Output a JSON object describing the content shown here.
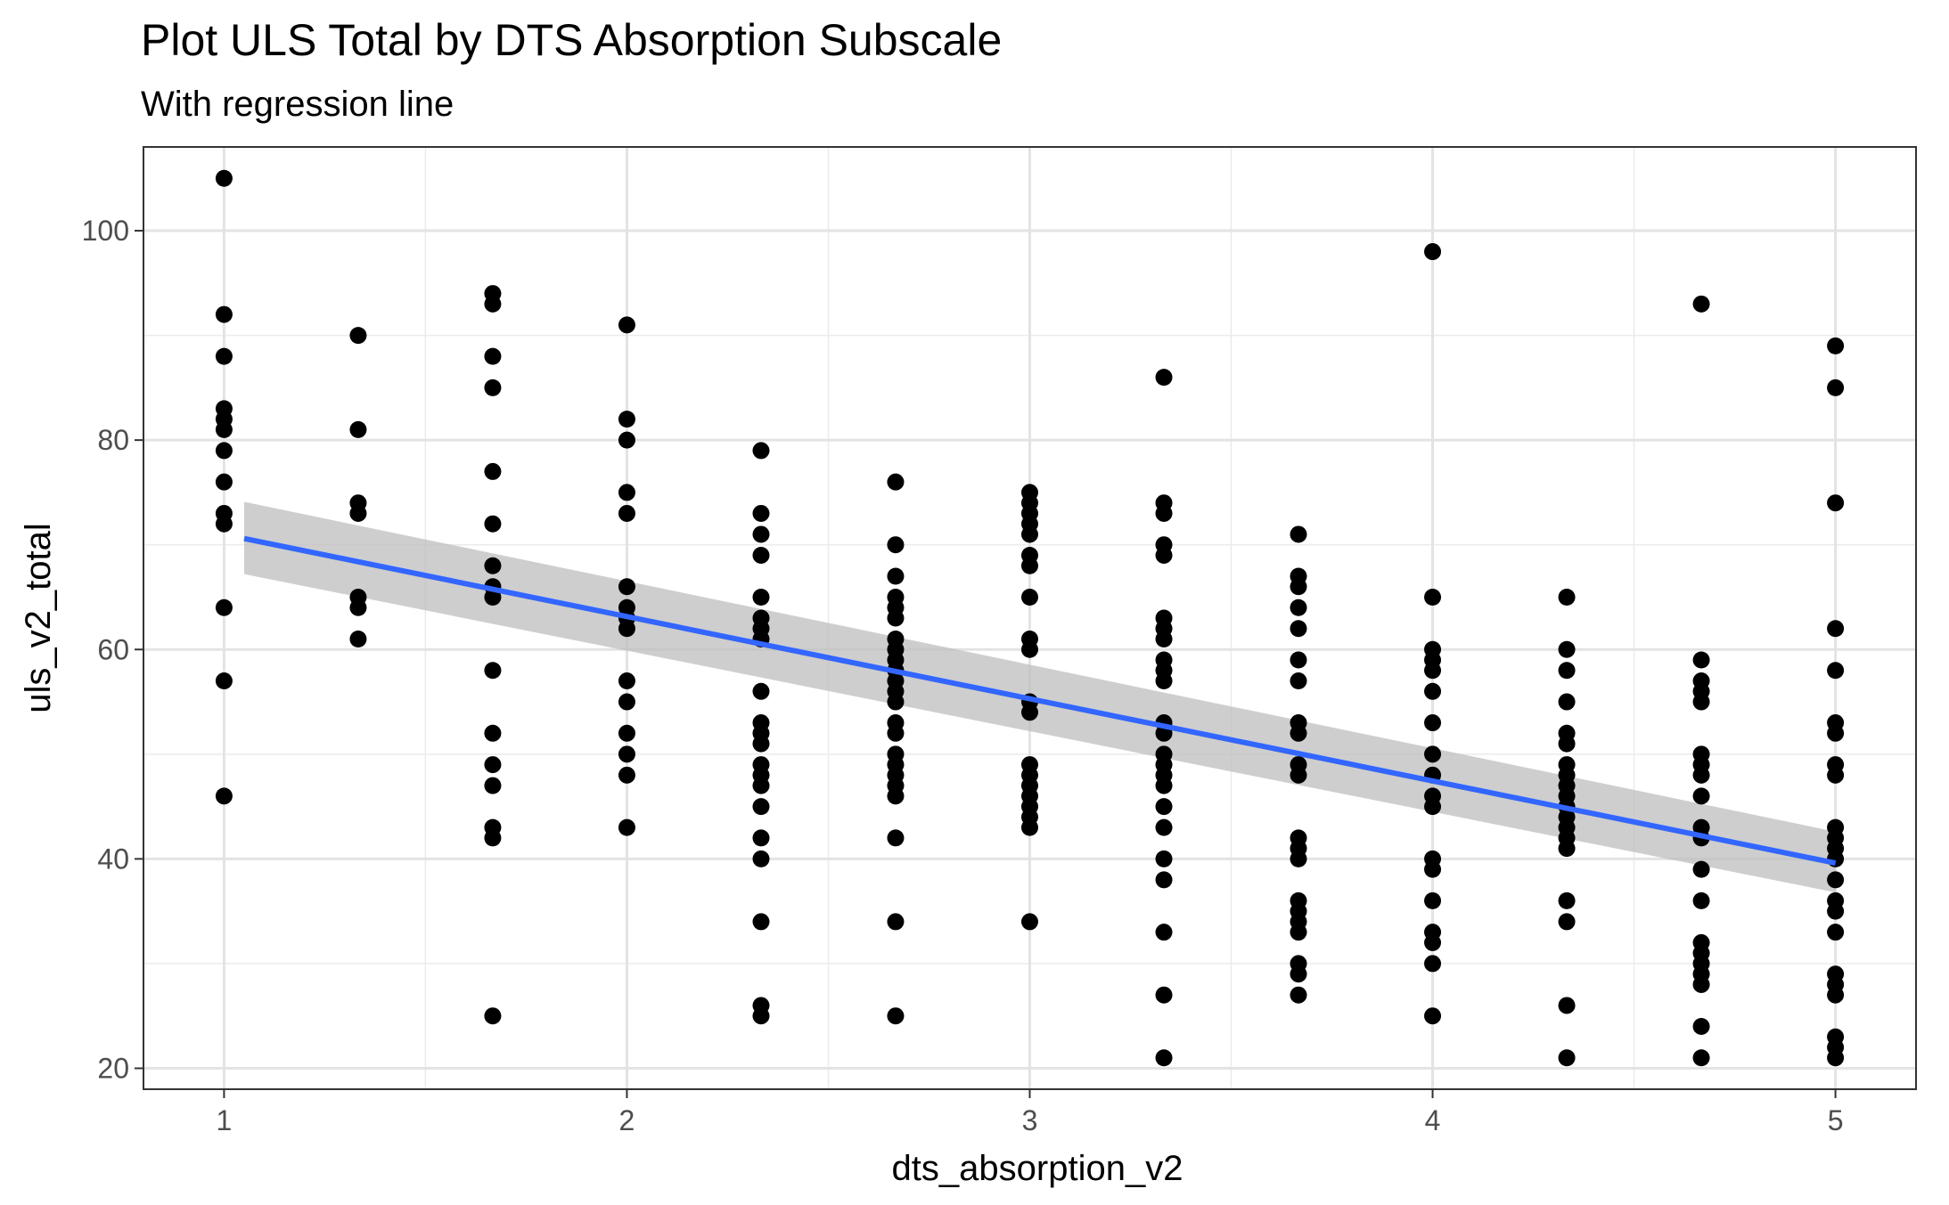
{
  "chart_data": {
    "type": "scatter",
    "title": "Plot ULS Total by DTS Absorption Subscale",
    "subtitle": "With regression line",
    "xlabel": "dts_absorption_v2",
    "ylabel": "uls_v2_total",
    "xlim": [
      0.8,
      5.2
    ],
    "ylim": [
      18,
      108
    ],
    "x_ticks": [
      1,
      2,
      3,
      4,
      5
    ],
    "y_ticks": [
      20,
      40,
      60,
      80,
      100
    ],
    "x_tick_labels": [
      "1",
      "2",
      "3",
      "4",
      "5"
    ],
    "y_tick_labels": [
      "20",
      "40",
      "60",
      "80",
      "100"
    ],
    "grid": true,
    "point_color": "#000000",
    "line_color": "#3366ff",
    "band_color": "#bebebe",
    "points": [
      [
        1,
        105
      ],
      [
        1,
        92
      ],
      [
        1,
        88
      ],
      [
        1,
        83
      ],
      [
        1,
        82
      ],
      [
        1,
        81
      ],
      [
        1,
        79
      ],
      [
        1,
        76
      ],
      [
        1,
        73
      ],
      [
        1,
        72
      ],
      [
        1,
        64
      ],
      [
        1,
        57
      ],
      [
        1,
        46
      ],
      [
        1.333,
        90
      ],
      [
        1.333,
        81
      ],
      [
        1.333,
        74
      ],
      [
        1.333,
        73
      ],
      [
        1.333,
        65
      ],
      [
        1.333,
        64
      ],
      [
        1.333,
        61
      ],
      [
        1.667,
        94
      ],
      [
        1.667,
        93
      ],
      [
        1.667,
        88
      ],
      [
        1.667,
        85
      ],
      [
        1.667,
        77
      ],
      [
        1.667,
        72
      ],
      [
        1.667,
        68
      ],
      [
        1.667,
        66
      ],
      [
        1.667,
        65
      ],
      [
        1.667,
        58
      ],
      [
        1.667,
        52
      ],
      [
        1.667,
        49
      ],
      [
        1.667,
        47
      ],
      [
        1.667,
        43
      ],
      [
        1.667,
        42
      ],
      [
        1.667,
        25
      ],
      [
        2,
        91
      ],
      [
        2,
        82
      ],
      [
        2,
        80
      ],
      [
        2,
        75
      ],
      [
        2,
        73
      ],
      [
        2,
        66
      ],
      [
        2,
        64
      ],
      [
        2,
        63
      ],
      [
        2,
        62
      ],
      [
        2,
        57
      ],
      [
        2,
        55
      ],
      [
        2,
        52
      ],
      [
        2,
        50
      ],
      [
        2,
        48
      ],
      [
        2,
        43
      ],
      [
        2.333,
        79
      ],
      [
        2.333,
        73
      ],
      [
        2.333,
        71
      ],
      [
        2.333,
        69
      ],
      [
        2.333,
        65
      ],
      [
        2.333,
        63
      ],
      [
        2.333,
        62
      ],
      [
        2.333,
        61
      ],
      [
        2.333,
        56
      ],
      [
        2.333,
        53
      ],
      [
        2.333,
        52
      ],
      [
        2.333,
        51
      ],
      [
        2.333,
        49
      ],
      [
        2.333,
        48
      ],
      [
        2.333,
        47
      ],
      [
        2.333,
        45
      ],
      [
        2.333,
        42
      ],
      [
        2.333,
        40
      ],
      [
        2.333,
        34
      ],
      [
        2.333,
        26
      ],
      [
        2.333,
        25
      ],
      [
        2.667,
        76
      ],
      [
        2.667,
        70
      ],
      [
        2.667,
        67
      ],
      [
        2.667,
        65
      ],
      [
        2.667,
        64
      ],
      [
        2.667,
        63
      ],
      [
        2.667,
        61
      ],
      [
        2.667,
        60
      ],
      [
        2.667,
        59
      ],
      [
        2.667,
        58
      ],
      [
        2.667,
        57
      ],
      [
        2.667,
        56
      ],
      [
        2.667,
        55
      ],
      [
        2.667,
        53
      ],
      [
        2.667,
        52
      ],
      [
        2.667,
        50
      ],
      [
        2.667,
        49
      ],
      [
        2.667,
        48
      ],
      [
        2.667,
        47
      ],
      [
        2.667,
        46
      ],
      [
        2.667,
        42
      ],
      [
        2.667,
        34
      ],
      [
        2.667,
        25
      ],
      [
        3,
        75
      ],
      [
        3,
        74
      ],
      [
        3,
        73
      ],
      [
        3,
        72
      ],
      [
        3,
        71
      ],
      [
        3,
        69
      ],
      [
        3,
        68
      ],
      [
        3,
        65
      ],
      [
        3,
        61
      ],
      [
        3,
        60
      ],
      [
        3,
        55
      ],
      [
        3,
        54
      ],
      [
        3,
        49
      ],
      [
        3,
        48
      ],
      [
        3,
        47
      ],
      [
        3,
        46
      ],
      [
        3,
        45
      ],
      [
        3,
        44
      ],
      [
        3,
        43
      ],
      [
        3,
        34
      ],
      [
        3.333,
        86
      ],
      [
        3.333,
        74
      ],
      [
        3.333,
        73
      ],
      [
        3.333,
        70
      ],
      [
        3.333,
        69
      ],
      [
        3.333,
        63
      ],
      [
        3.333,
        62
      ],
      [
        3.333,
        61
      ],
      [
        3.333,
        59
      ],
      [
        3.333,
        58
      ],
      [
        3.333,
        57
      ],
      [
        3.333,
        53
      ],
      [
        3.333,
        52
      ],
      [
        3.333,
        50
      ],
      [
        3.333,
        49
      ],
      [
        3.333,
        48
      ],
      [
        3.333,
        47
      ],
      [
        3.333,
        45
      ],
      [
        3.333,
        43
      ],
      [
        3.333,
        40
      ],
      [
        3.333,
        38
      ],
      [
        3.333,
        33
      ],
      [
        3.333,
        27
      ],
      [
        3.333,
        21
      ],
      [
        3.667,
        71
      ],
      [
        3.667,
        67
      ],
      [
        3.667,
        66
      ],
      [
        3.667,
        64
      ],
      [
        3.667,
        62
      ],
      [
        3.667,
        59
      ],
      [
        3.667,
        57
      ],
      [
        3.667,
        53
      ],
      [
        3.667,
        52
      ],
      [
        3.667,
        49
      ],
      [
        3.667,
        48
      ],
      [
        3.667,
        42
      ],
      [
        3.667,
        41
      ],
      [
        3.667,
        40
      ],
      [
        3.667,
        36
      ],
      [
        3.667,
        35
      ],
      [
        3.667,
        34
      ],
      [
        3.667,
        33
      ],
      [
        3.667,
        30
      ],
      [
        3.667,
        29
      ],
      [
        3.667,
        27
      ],
      [
        4,
        98
      ],
      [
        4,
        65
      ],
      [
        4,
        60
      ],
      [
        4,
        59
      ],
      [
        4,
        58
      ],
      [
        4,
        56
      ],
      [
        4,
        53
      ],
      [
        4,
        50
      ],
      [
        4,
        48
      ],
      [
        4,
        46
      ],
      [
        4,
        45
      ],
      [
        4,
        40
      ],
      [
        4,
        39
      ],
      [
        4,
        36
      ],
      [
        4,
        33
      ],
      [
        4,
        32
      ],
      [
        4,
        30
      ],
      [
        4,
        25
      ],
      [
        4.333,
        65
      ],
      [
        4.333,
        60
      ],
      [
        4.333,
        58
      ],
      [
        4.333,
        55
      ],
      [
        4.333,
        52
      ],
      [
        4.333,
        51
      ],
      [
        4.333,
        49
      ],
      [
        4.333,
        48
      ],
      [
        4.333,
        47
      ],
      [
        4.333,
        46
      ],
      [
        4.333,
        45
      ],
      [
        4.333,
        44
      ],
      [
        4.333,
        43
      ],
      [
        4.333,
        42
      ],
      [
        4.333,
        41
      ],
      [
        4.333,
        36
      ],
      [
        4.333,
        34
      ],
      [
        4.333,
        26
      ],
      [
        4.333,
        21
      ],
      [
        4.667,
        93
      ],
      [
        4.667,
        59
      ],
      [
        4.667,
        57
      ],
      [
        4.667,
        56
      ],
      [
        4.667,
        55
      ],
      [
        4.667,
        50
      ],
      [
        4.667,
        49
      ],
      [
        4.667,
        48
      ],
      [
        4.667,
        46
      ],
      [
        4.667,
        43
      ],
      [
        4.667,
        42
      ],
      [
        4.667,
        39
      ],
      [
        4.667,
        36
      ],
      [
        4.667,
        32
      ],
      [
        4.667,
        31
      ],
      [
        4.667,
        30
      ],
      [
        4.667,
        29
      ],
      [
        4.667,
        28
      ],
      [
        4.667,
        24
      ],
      [
        4.667,
        21
      ],
      [
        5,
        89
      ],
      [
        5,
        85
      ],
      [
        5,
        74
      ],
      [
        5,
        62
      ],
      [
        5,
        58
      ],
      [
        5,
        53
      ],
      [
        5,
        52
      ],
      [
        5,
        49
      ],
      [
        5,
        48
      ],
      [
        5,
        43
      ],
      [
        5,
        42
      ],
      [
        5,
        41
      ],
      [
        5,
        40
      ],
      [
        5,
        38
      ],
      [
        5,
        36
      ],
      [
        5,
        35
      ],
      [
        5,
        33
      ],
      [
        5,
        29
      ],
      [
        5,
        28
      ],
      [
        5,
        27
      ],
      [
        5,
        23
      ],
      [
        5,
        22
      ],
      [
        5,
        21
      ]
    ],
    "regression": {
      "x": [
        1.05,
        5
      ],
      "y": [
        70.6,
        39.6
      ],
      "ci_lower": [
        67.2,
        36.8
      ],
      "ci_upper": [
        74.1,
        42.6
      ]
    }
  }
}
